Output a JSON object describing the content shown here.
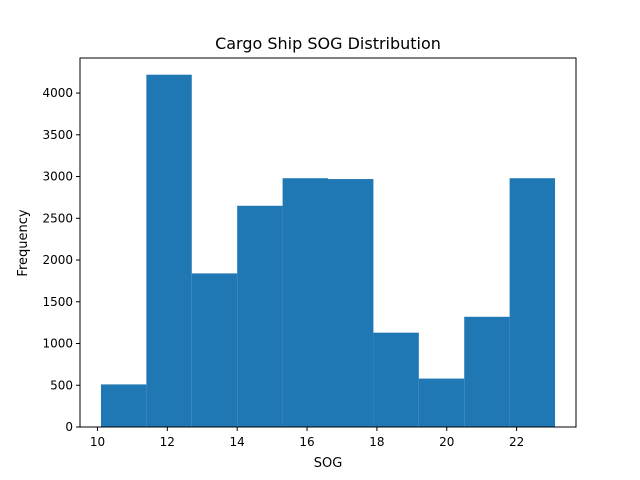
{
  "chart_data": {
    "type": "bar",
    "title": "Cargo Ship SOG Distribution",
    "xlabel": "SOG",
    "ylabel": "Frequency",
    "bar_color": "#1f77b4",
    "xlim": [
      9.5,
      23.7
    ],
    "ylim": [
      0,
      4420
    ],
    "x_ticks": [
      10,
      12,
      14,
      16,
      18,
      20,
      22
    ],
    "y_ticks": [
      0,
      500,
      1000,
      1500,
      2000,
      2500,
      3000,
      3500,
      4000
    ],
    "bins": [
      {
        "x0": 10.1,
        "x1": 11.4,
        "count": 510
      },
      {
        "x0": 11.4,
        "x1": 12.7,
        "count": 4220
      },
      {
        "x0": 12.7,
        "x1": 14.0,
        "count": 1840
      },
      {
        "x0": 14.0,
        "x1": 15.3,
        "count": 2650
      },
      {
        "x0": 15.3,
        "x1": 16.6,
        "count": 2980
      },
      {
        "x0": 16.6,
        "x1": 17.9,
        "count": 2970
      },
      {
        "x0": 17.9,
        "x1": 19.2,
        "count": 1130
      },
      {
        "x0": 19.2,
        "x1": 20.5,
        "count": 580
      },
      {
        "x0": 20.5,
        "x1": 21.8,
        "count": 1320
      },
      {
        "x0": 21.8,
        "x1": 23.1,
        "count": 2980
      }
    ],
    "grid": false,
    "legend": "none"
  }
}
